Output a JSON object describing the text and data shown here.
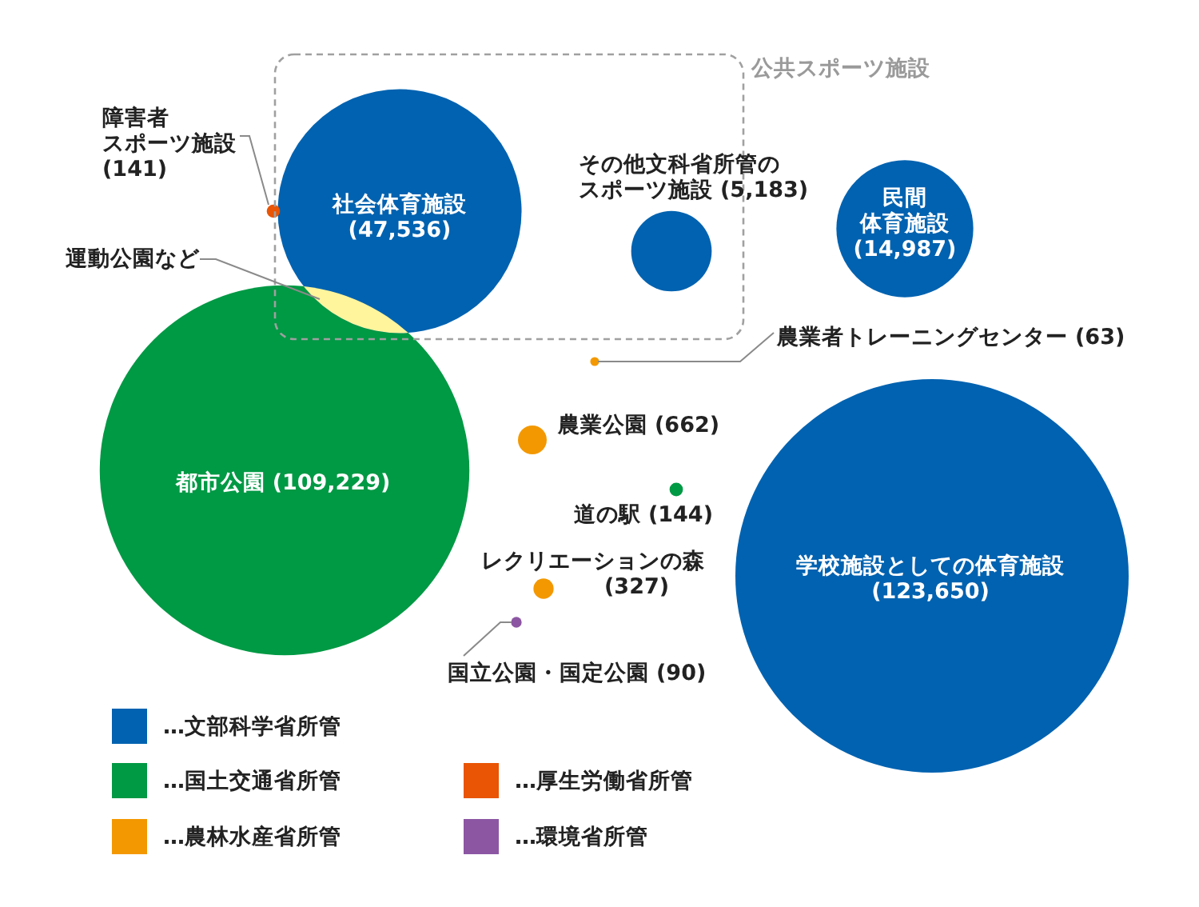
{
  "chart_data": {
    "type": "other",
    "categories": [
      "障害者スポーツ施設",
      "社会体育施設",
      "運動公園など",
      "その他文科省所管のスポーツ施設",
      "民間体育施設",
      "農業者トレーニングセンター",
      "都市公園",
      "農業公園",
      "道の駅",
      "学校施設としての体育施設",
      "レクリエーションの森",
      "国立公園・国定公園"
    ],
    "series": [
      {
        "name": "…文部科学省所管",
        "color": "#0062b0",
        "values": [
          null,
          47536,
          null,
          5183,
          14987,
          null,
          null,
          null,
          null,
          123650,
          null,
          null
        ],
        "value_labels": [
          null,
          "(47,536)",
          null,
          "(5,183)",
          "(14,987)",
          null,
          null,
          null,
          null,
          "(123,650)",
          null,
          null
        ]
      },
      {
        "name": "…国土交通省所管",
        "color": "#009944",
        "values": [
          null,
          null,
          null,
          null,
          null,
          null,
          109229,
          null,
          144,
          null,
          null,
          null
        ],
        "value_labels": [
          null,
          null,
          null,
          null,
          null,
          null,
          "(109,229)",
          null,
          "(144)",
          null,
          null,
          null
        ]
      },
      {
        "name": "…農林水産省所管",
        "color": "#f39800",
        "values": [
          null,
          null,
          null,
          null,
          null,
          63,
          null,
          662,
          null,
          null,
          327,
          null
        ],
        "value_labels": [
          null,
          null,
          null,
          null,
          null,
          "(63)",
          null,
          "(662)",
          null,
          null,
          "(327)",
          null
        ]
      },
      {
        "name": "…厚生労働省所管",
        "color": "#e95504",
        "values": [
          141,
          null,
          null,
          null,
          null,
          null,
          null,
          null,
          null,
          null,
          null,
          null
        ],
        "value_labels": [
          "(141)",
          null,
          null,
          null,
          null,
          null,
          null,
          null,
          null,
          null,
          null,
          null
        ]
      },
      {
        "name": "…環境省所管",
        "color": "#8c56a3",
        "values": [
          null,
          null,
          null,
          null,
          null,
          null,
          null,
          null,
          null,
          null,
          null,
          90
        ],
        "value_labels": [
          null,
          null,
          null,
          null,
          null,
          null,
          null,
          null,
          null,
          null,
          null,
          "(90)"
        ]
      }
    ],
    "colors": [
      "#e95504",
      "#0062b0",
      "#fff59c",
      "#0062b0",
      "#0062b0",
      "#f39800",
      "#009944",
      "#f39800",
      "#009944",
      "#0062b0",
      "#f39800",
      "#8c56a3"
    ],
    "annotations": [
      "公共スポーツ施設"
    ],
    "legend": "bottom"
  }
}
